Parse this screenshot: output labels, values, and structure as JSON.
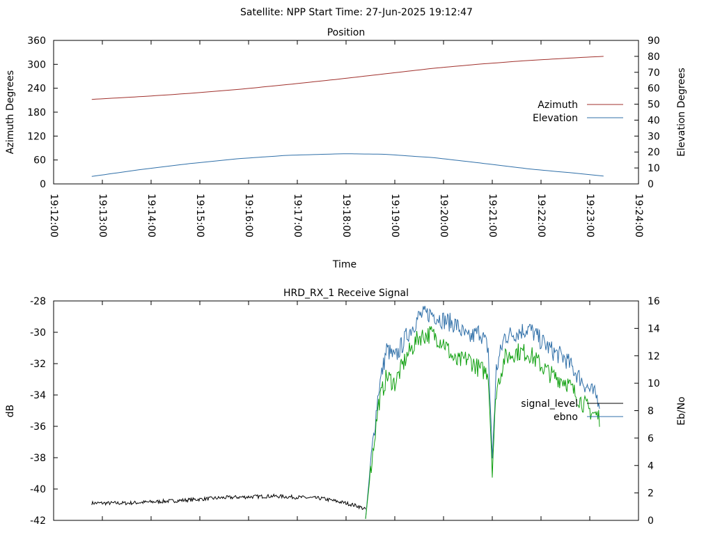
{
  "page_title": "Satellite: NPP    Start Time: 27-Jun-2025 19:12:47",
  "chart_data": [
    {
      "type": "line",
      "title": "Position",
      "xlabel": "Time",
      "ylabel": "Azimuth Degrees",
      "y2label": "Elevation Degrees",
      "ylim": [
        0,
        360
      ],
      "y2lim": [
        0,
        90
      ],
      "yticks": [
        "0",
        "60",
        "120",
        "180",
        "240",
        "300",
        "360"
      ],
      "y2ticks": [
        "0",
        "10",
        "20",
        "30",
        "40",
        "50",
        "60",
        "70",
        "80",
        "90"
      ],
      "xlim": [
        "19:12:00",
        "19:24:00"
      ],
      "xticks": [
        "19:12:00",
        "19:13:00",
        "19:14:00",
        "19:15:00",
        "19:16:00",
        "19:17:00",
        "19:18:00",
        "19:19:00",
        "19:20:00",
        "19:21:00",
        "19:22:00",
        "19:23:00",
        "19:24:00"
      ],
      "legend_placement": "right",
      "series": [
        {
          "name": "Azimuth",
          "axis": "y",
          "color": "#a0302c",
          "x": [
            "19:12:47",
            "19:13:47",
            "19:14:47",
            "19:15:47",
            "19:16:47",
            "19:17:47",
            "19:18:47",
            "19:19:47",
            "19:20:47",
            "19:21:47",
            "19:22:47",
            "19:23:17"
          ],
          "values": [
            212,
            219,
            227,
            237,
            249,
            262,
            276,
            290,
            301,
            310,
            317,
            320
          ]
        },
        {
          "name": "Elevation",
          "axis": "y2",
          "color": "#2f6fa8",
          "x": [
            "19:12:47",
            "19:13:47",
            "19:14:47",
            "19:15:47",
            "19:16:47",
            "19:17:47",
            "19:18:02",
            "19:18:47",
            "19:19:47",
            "19:20:47",
            "19:21:47",
            "19:22:47",
            "19:23:17"
          ],
          "values": [
            4.7,
            9.0,
            12.7,
            15.8,
            17.9,
            18.8,
            18.9,
            18.6,
            16.5,
            13.0,
            9.3,
            6.5,
            4.9
          ]
        }
      ]
    },
    {
      "type": "line",
      "title": "HRD_RX_1 Receive Signal",
      "xlabel": "",
      "ylabel": "dB",
      "y2label": "Eb/No",
      "ylim": [
        -42,
        -28
      ],
      "y2lim": [
        0,
        16
      ],
      "yticks": [
        "-42",
        "-40",
        "-38",
        "-36",
        "-34",
        "-32",
        "-30",
        "-28"
      ],
      "y2ticks": [
        "0",
        "2",
        "4",
        "6",
        "8",
        "10",
        "12",
        "14",
        "16"
      ],
      "xlim": [
        "19:12:00",
        "19:24:00"
      ],
      "legend_placement": "right",
      "series": [
        {
          "name": "signal_level",
          "axis": "y",
          "color": "#000000",
          "x": [
            "19:12:47",
            "19:13:30",
            "19:14:30",
            "19:15:30",
            "19:16:30",
            "19:17:30",
            "19:18:00",
            "19:18:15",
            "19:18:24"
          ],
          "values": [
            -40.9,
            -40.9,
            -40.75,
            -40.55,
            -40.45,
            -40.6,
            -40.9,
            -41.1,
            -41.3
          ]
        },
        {
          "name": "ebno",
          "axis": "y2",
          "color": "#2f6fa8",
          "x": [
            "19:18:24",
            "19:18:30",
            "19:18:40",
            "19:18:50",
            "19:19:00",
            "19:19:15",
            "19:19:30",
            "19:19:45",
            "19:20:00",
            "19:20:15",
            "19:20:30",
            "19:20:45",
            "19:20:55",
            "19:21:00",
            "19:21:05",
            "19:21:15",
            "19:21:30",
            "19:21:45",
            "19:22:00",
            "19:22:15",
            "19:22:30",
            "19:22:45",
            "19:23:00",
            "19:23:12"
          ],
          "values": [
            0.1,
            4.0,
            9.5,
            12.5,
            11.8,
            13.5,
            14.9,
            15.1,
            14.6,
            14.3,
            13.2,
            13.8,
            12.5,
            4.5,
            11.0,
            13.4,
            13.7,
            14.0,
            13.1,
            12.3,
            11.8,
            10.6,
            9.5,
            8.8
          ]
        },
        {
          "name": "",
          "axis": "y2",
          "color": "#10a010",
          "x": [
            "19:18:24",
            "19:18:30",
            "19:18:40",
            "19:18:50",
            "19:19:00",
            "19:19:15",
            "19:19:30",
            "19:19:45",
            "19:20:00",
            "19:20:15",
            "19:20:30",
            "19:20:45",
            "19:20:55",
            "19:21:00",
            "19:21:05",
            "19:21:15",
            "19:21:30",
            "19:21:45",
            "19:22:00",
            "19:22:15",
            "19:22:30",
            "19:22:45",
            "19:23:00",
            "19:23:12"
          ],
          "values": [
            0.1,
            3.5,
            8.5,
            10.5,
            10.0,
            12.0,
            13.4,
            13.6,
            13.0,
            11.5,
            11.8,
            11.0,
            10.8,
            3.8,
            9.5,
            11.8,
            12.3,
            12.2,
            11.3,
            10.5,
            10.2,
            9.0,
            8.0,
            7.5
          ]
        }
      ]
    }
  ]
}
